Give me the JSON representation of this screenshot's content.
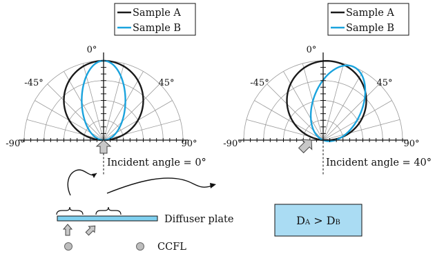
{
  "chart_data": [
    {
      "type": "polar",
      "title": "",
      "incident_angle_deg": 0,
      "caption": "Incident angle = 0°",
      "angular_tick_labels": [
        "0°",
        "-45°",
        "45°",
        "-90°",
        "90°"
      ],
      "angle_range": [
        -90,
        90
      ],
      "legend": {
        "placement": "top",
        "entries": [
          "Sample A",
          "Sample B"
        ]
      },
      "series": [
        {
          "name": "Sample A",
          "color": "#1a1a1a",
          "shape": "ellipse",
          "tilt_deg": 0,
          "width_ratio": 1.0,
          "length_ratio": 1.0
        },
        {
          "name": "Sample B",
          "color": "#1aa3dd",
          "shape": "ellipse",
          "tilt_deg": 0,
          "width_ratio": 0.55,
          "length_ratio": 1.0
        }
      ]
    },
    {
      "type": "polar",
      "title": "",
      "incident_angle_deg": 40,
      "caption": "Incident angle = 40°",
      "angular_tick_labels": [
        "0°",
        "-45°",
        "45°",
        "-90°",
        "90°"
      ],
      "angle_range": [
        -90,
        90
      ],
      "legend": {
        "placement": "top",
        "entries": [
          "Sample A",
          "Sample B"
        ]
      },
      "series": [
        {
          "name": "Sample A",
          "color": "#1a1a1a",
          "shape": "ellipse",
          "tilt_deg": 5,
          "width_ratio": 1.0,
          "length_ratio": 1.0
        },
        {
          "name": "Sample B",
          "color": "#1aa3dd",
          "shape": "ellipse",
          "tilt_deg": 22,
          "width_ratio": 0.62,
          "length_ratio": 1.0
        }
      ]
    }
  ],
  "diagram": {
    "diffuser_label": "Diffuser plate",
    "ccfl_label": "CCFL",
    "result_box_label": {
      "d1": "D",
      "s1": "A",
      "op": " > ",
      "d2": "D",
      "s2": "B"
    },
    "diffuser_color": "#7fd0ef",
    "box_fill": "#aadcf3"
  }
}
